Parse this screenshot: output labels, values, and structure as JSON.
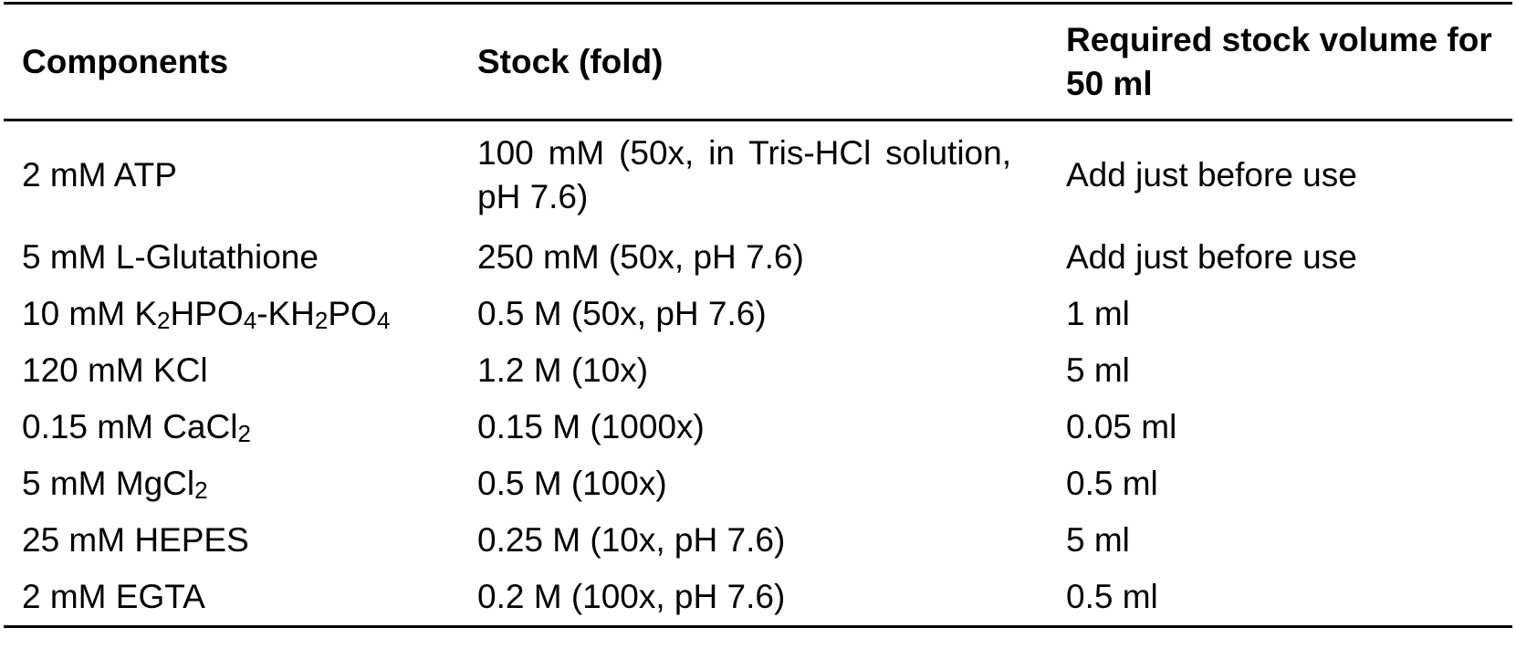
{
  "table": {
    "headers": [
      "Components",
      "Stock (fold)",
      "Required stock volume for 50 ml"
    ],
    "rows": [
      {
        "component": "2 mM ATP",
        "stock": "100 mM (50x, in Tris-HCl solution, pH 7.6)",
        "volume": "Add just before use"
      },
      {
        "component": "5 mM L-Glutathione",
        "stock": "250 mM (50x, pH 7.6)",
        "volume": "Add just before use"
      },
      {
        "component_parts": [
          "10 mM K",
          "2",
          "HPO",
          "4",
          "-KH",
          "2",
          "PO",
          "4"
        ],
        "stock": "0.5 M (50x, pH 7.6)",
        "volume": "1 ml"
      },
      {
        "component": "120 mM KCl",
        "stock": "1.2 M (10x)",
        "volume": "5 ml"
      },
      {
        "component_parts": [
          "0.15 mM CaCl",
          "2"
        ],
        "stock": "0.15 M (1000x)",
        "volume": "0.05 ml"
      },
      {
        "component_parts": [
          "5 mM MgCl",
          "2"
        ],
        "stock": "0.5 M (100x)",
        "volume": "0.5 ml"
      },
      {
        "component": "25 mM HEPES",
        "stock": "0.25 M (10x, pH 7.6)",
        "volume": "5 ml"
      },
      {
        "component": "2 mM EGTA",
        "stock": "0.2 M (100x, pH 7.6)",
        "volume": "0.5 ml"
      }
    ]
  }
}
